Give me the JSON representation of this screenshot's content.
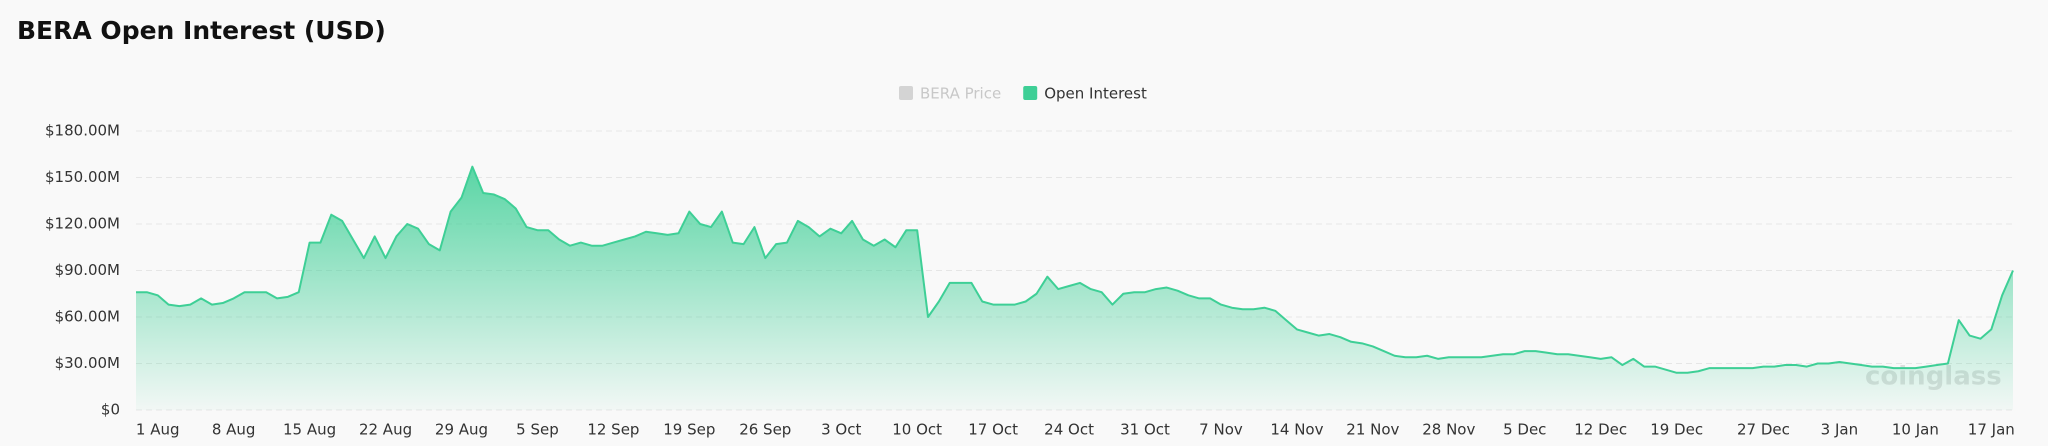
{
  "chart_data": {
    "type": "area",
    "title": "BERA Open Interest (USD)",
    "watermark": "coinglass",
    "categories": [
      null,
      null,
      "1 Aug",
      null,
      null,
      null,
      null,
      null,
      null,
      "8 Aug",
      null,
      null,
      null,
      null,
      null,
      null,
      "15 Aug",
      null,
      null,
      null,
      null,
      null,
      null,
      "22 Aug",
      null,
      null,
      null,
      null,
      null,
      null,
      "29 Aug",
      null,
      null,
      null,
      null,
      null,
      null,
      "5 Sep",
      null,
      null,
      null,
      null,
      null,
      null,
      "12 Sep",
      null,
      null,
      null,
      null,
      null,
      null,
      "19 Sep",
      null,
      null,
      null,
      null,
      null,
      null,
      "26 Sep",
      null,
      null,
      null,
      null,
      null,
      null,
      "3 Oct",
      null,
      null,
      null,
      null,
      null,
      null,
      "10 Oct",
      null,
      null,
      null,
      null,
      null,
      null,
      "17 Oct",
      null,
      null,
      null,
      null,
      null,
      null,
      "24 Oct",
      null,
      null,
      null,
      null,
      null,
      null,
      "31 Oct",
      null,
      null,
      null,
      null,
      null,
      null,
      "7 Nov",
      null,
      null,
      null,
      null,
      null,
      null,
      "14 Nov",
      null,
      null,
      null,
      null,
      null,
      null,
      "21 Nov",
      null,
      null,
      null,
      null,
      null,
      null,
      "28 Nov",
      null,
      null,
      null,
      null,
      null,
      null,
      "5 Dec",
      null,
      null,
      null,
      null,
      null,
      null,
      "12 Dec",
      null,
      null,
      null,
      null,
      null,
      null,
      "19 Dec",
      null,
      null,
      null,
      null,
      null,
      null,
      null,
      "27 Dec",
      null,
      null,
      null,
      null,
      null,
      null,
      "3 Jan",
      null,
      null,
      null,
      null,
      null,
      null,
      "10 Jan",
      null,
      null,
      null,
      null,
      null,
      null,
      "17 Jan",
      null,
      null
    ],
    "series": [
      {
        "name": "BERA Price",
        "color": "#d4d4d4",
        "visible": false
      },
      {
        "name": "Open Interest",
        "color": "#3ecf96",
        "visible": true,
        "values": [
          76,
          76,
          74,
          68,
          67,
          68,
          72,
          68,
          69,
          72,
          76,
          76,
          76,
          72,
          73,
          76,
          108,
          108,
          126,
          122,
          110,
          98,
          112,
          98,
          112,
          120,
          117,
          107,
          103,
          128,
          137,
          157,
          140,
          139,
          136,
          130,
          118,
          116,
          116,
          110,
          106,
          108,
          106,
          106,
          108,
          110,
          112,
          115,
          114,
          113,
          114,
          128,
          120,
          118,
          128,
          108,
          107,
          118,
          98,
          107,
          108,
          122,
          118,
          112,
          117,
          114,
          122,
          110,
          106,
          110,
          105,
          116,
          116,
          60,
          70,
          82,
          82,
          82,
          70,
          68,
          68,
          68,
          70,
          75,
          86,
          78,
          80,
          82,
          78,
          76,
          68,
          75,
          76,
          76,
          78,
          79,
          77,
          74,
          72,
          72,
          68,
          66,
          65,
          65,
          66,
          64,
          58,
          52,
          50,
          48,
          49,
          47,
          44,
          43,
          41,
          38,
          35,
          34,
          34,
          35,
          33,
          34,
          34,
          34,
          34,
          35,
          36,
          36,
          38,
          38,
          37,
          36,
          36,
          35,
          34,
          33,
          34,
          29,
          33,
          28,
          28,
          26,
          24,
          24,
          25,
          27,
          27,
          27,
          27,
          27,
          28,
          28,
          29,
          29,
          28,
          30,
          30,
          31,
          30,
          29,
          28,
          28,
          27,
          27,
          27,
          28,
          29,
          30,
          58,
          48,
          46,
          52,
          74,
          90
        ]
      }
    ],
    "ylim": [
      0,
      180
    ],
    "yticks": [
      {
        "value": 0,
        "label": "$0"
      },
      {
        "value": 30,
        "label": "$30.00M"
      },
      {
        "value": 60,
        "label": "$60.00M"
      },
      {
        "value": 90,
        "label": "$90.00M"
      },
      {
        "value": 120,
        "label": "$120.00M"
      },
      {
        "value": 150,
        "label": "$150.00M"
      },
      {
        "value": 180,
        "label": "$180.00M"
      }
    ],
    "grid": true
  }
}
